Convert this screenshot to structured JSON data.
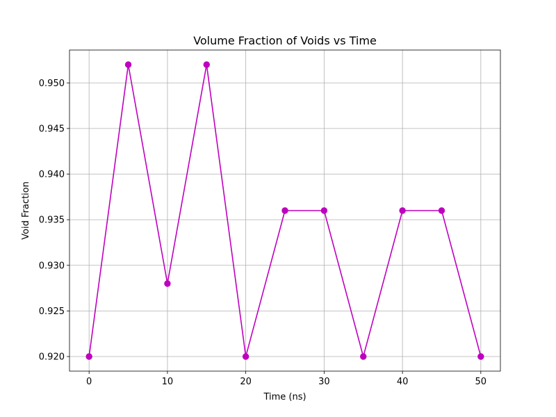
{
  "chart_data": {
    "type": "line",
    "title": "Volume Fraction of Voids vs Time",
    "xlabel": "Time (ns)",
    "ylabel": "Void Fraction",
    "x": [
      0,
      5,
      10,
      15,
      20,
      25,
      30,
      35,
      40,
      45,
      50
    ],
    "series": [
      {
        "values": [
          0.92,
          0.952,
          0.928,
          0.952,
          0.92,
          0.936,
          0.936,
          0.92,
          0.936,
          0.936,
          0.92
        ],
        "color": "#bf00bf",
        "marker": "circle"
      }
    ],
    "xlim": [
      -2.5,
      52.5
    ],
    "ylim": [
      0.9184,
      0.9536
    ],
    "xticks": [
      "0",
      "10",
      "20",
      "30",
      "40",
      "50"
    ],
    "yticks": [
      "0.920",
      "0.925",
      "0.930",
      "0.935",
      "0.940",
      "0.945",
      "0.950"
    ],
    "grid": true
  }
}
